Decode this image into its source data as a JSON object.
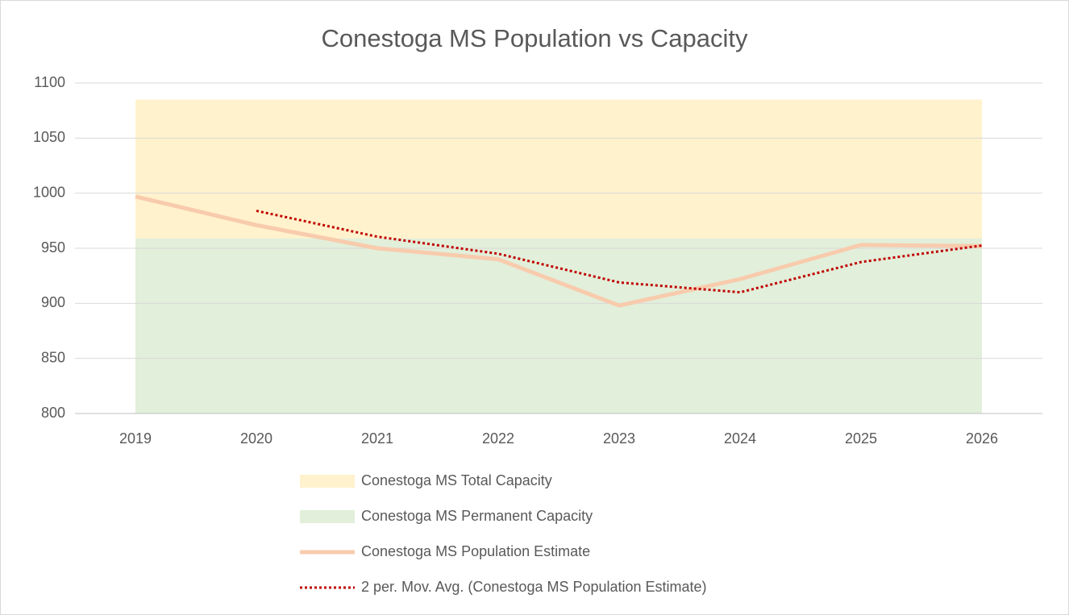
{
  "chart_data": {
    "type": "line",
    "title": "Conestoga MS Population vs Capacity",
    "categories": [
      "2019",
      "2020",
      "2021",
      "2022",
      "2023",
      "2024",
      "2025",
      "2026"
    ],
    "series": [
      {
        "name": "Conestoga MS Total Capacity",
        "kind": "area",
        "color": "#fff2cc",
        "values": [
          1085,
          1085,
          1085,
          1085,
          1085,
          1085,
          1085,
          1085
        ]
      },
      {
        "name": "Conestoga MS Permanent Capacity",
        "kind": "area",
        "color": "#e2efda",
        "values": [
          959,
          959,
          959,
          959,
          959,
          959,
          959,
          959
        ]
      },
      {
        "name": "Conestoga MS Population Estimate",
        "kind": "line",
        "color": "#f8cbad",
        "values": [
          997,
          971,
          950,
          940,
          898,
          922,
          953,
          952
        ]
      },
      {
        "name": "2 per. Mov. Avg. (Conestoga MS Population Estimate)",
        "kind": "dotted",
        "color": "#c00000",
        "values": [
          null,
          984,
          960.5,
          945,
          919,
          910,
          937.5,
          952.5
        ]
      }
    ],
    "ylim": [
      800,
      1100
    ],
    "yticks": [
      800,
      850,
      900,
      950,
      1000,
      1050,
      1100
    ],
    "grid": true,
    "legend": "bottom"
  }
}
